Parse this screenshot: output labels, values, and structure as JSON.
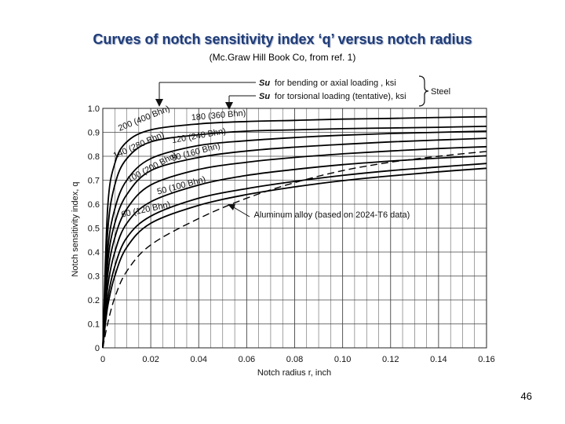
{
  "slide": {
    "title": "Curves of notch sensitivity index ‘q’ versus notch radius",
    "subtitle": "(Mc.Graw Hill Book Co, from ref. 1)",
    "page_number": "46"
  },
  "chart_data": {
    "type": "line",
    "xlabel": "Notch radius r, inch",
    "ylabel": "Notch sensitivity index, q",
    "xlim": [
      0,
      0.16
    ],
    "ylim": [
      0,
      1.0
    ],
    "x_ticks": [
      "0",
      "0.02",
      "0.04",
      "0.06",
      "0.08",
      "0.10",
      "0.12",
      "0.14",
      "0.16"
    ],
    "y_ticks": [
      "0",
      "0.1",
      "0.2",
      "0.3",
      "0.4",
      "0.5",
      "0.6",
      "0.7",
      "0.8",
      "0.9",
      "1.0"
    ],
    "grid": true,
    "legend": {
      "line1": "for bending or axial loading , ksi",
      "line2": "for torsional loading (tentative), ksi",
      "symbol": "Su",
      "group_label": "Steel"
    },
    "series": [
      {
        "name": "200 (400 Bhn)",
        "style": "solid",
        "label_angle": -22,
        "x": [
          0.0,
          0.002,
          0.005,
          0.01,
          0.02,
          0.04,
          0.06,
          0.08,
          0.1,
          0.12,
          0.14,
          0.16
        ],
        "y": [
          0.0,
          0.58,
          0.77,
          0.86,
          0.91,
          0.935,
          0.945,
          0.95,
          0.955,
          0.958,
          0.962,
          0.965
        ]
      },
      {
        "name": "180 (360 Bhn)",
        "style": "solid",
        "label_angle": -5,
        "x": [
          0.0,
          0.002,
          0.005,
          0.01,
          0.02,
          0.04,
          0.06,
          0.08,
          0.1,
          0.12,
          0.14,
          0.16
        ],
        "y": [
          0.0,
          0.48,
          0.68,
          0.79,
          0.86,
          0.89,
          0.905,
          0.91,
          0.915,
          0.918,
          0.921,
          0.925
        ]
      },
      {
        "name": "140 (280 Bhn)",
        "style": "solid",
        "label_angle": -24,
        "x": [
          0.0,
          0.002,
          0.005,
          0.01,
          0.02,
          0.04,
          0.06,
          0.08,
          0.1,
          0.12,
          0.14,
          0.16
        ],
        "y": [
          0.0,
          0.4,
          0.58,
          0.7,
          0.79,
          0.845,
          0.865,
          0.878,
          0.888,
          0.895,
          0.9,
          0.905
        ]
      },
      {
        "name": "120 (240 Bhn)",
        "style": "solid",
        "label_angle": -10,
        "x": [
          0.0,
          0.002,
          0.005,
          0.01,
          0.02,
          0.04,
          0.06,
          0.08,
          0.1,
          0.12,
          0.14,
          0.16
        ],
        "y": [
          0.0,
          0.35,
          0.52,
          0.64,
          0.74,
          0.795,
          0.822,
          0.838,
          0.85,
          0.86,
          0.868,
          0.875
        ]
      },
      {
        "name": "100 (200 Bhn)",
        "style": "solid",
        "label_angle": -28,
        "x": [
          0.0,
          0.002,
          0.005,
          0.01,
          0.02,
          0.04,
          0.06,
          0.08,
          0.1,
          0.12,
          0.14,
          0.16
        ],
        "y": [
          0.0,
          0.3,
          0.46,
          0.58,
          0.68,
          0.745,
          0.775,
          0.795,
          0.81,
          0.822,
          0.832,
          0.84
        ]
      },
      {
        "name": "80 (160 Bhn)",
        "style": "solid",
        "label_angle": -15,
        "x": [
          0.0,
          0.002,
          0.005,
          0.01,
          0.02,
          0.04,
          0.06,
          0.08,
          0.1,
          0.12,
          0.14,
          0.16
        ],
        "y": [
          0.0,
          0.25,
          0.4,
          0.52,
          0.61,
          0.68,
          0.72,
          0.745,
          0.765,
          0.78,
          0.792,
          0.802
        ]
      },
      {
        "name": "60 (120 Bhn)",
        "style": "solid",
        "label_angle": -12,
        "x": [
          0.0,
          0.002,
          0.005,
          0.01,
          0.02,
          0.04,
          0.06,
          0.08,
          0.1,
          0.12,
          0.14,
          0.16
        ],
        "y": [
          0.0,
          0.2,
          0.34,
          0.46,
          0.55,
          0.625,
          0.665,
          0.695,
          0.72,
          0.74,
          0.755,
          0.77
        ]
      },
      {
        "name": "50 (100 Bhn)",
        "style": "solid",
        "label_angle": -15,
        "x": [
          0.0,
          0.002,
          0.005,
          0.01,
          0.02,
          0.04,
          0.06,
          0.08,
          0.1,
          0.12,
          0.14,
          0.16
        ],
        "y": [
          0.0,
          0.17,
          0.3,
          0.42,
          0.52,
          0.595,
          0.64,
          0.672,
          0.698,
          0.718,
          0.735,
          0.75
        ]
      },
      {
        "name": "Aluminum alloy (based on 2024-T6 data)",
        "style": "dashed",
        "label_angle": 0,
        "x": [
          0.0,
          0.002,
          0.005,
          0.01,
          0.02,
          0.04,
          0.06,
          0.08,
          0.1,
          0.12,
          0.14,
          0.16
        ],
        "y": [
          0.0,
          0.1,
          0.21,
          0.32,
          0.43,
          0.54,
          0.625,
          0.69,
          0.74,
          0.775,
          0.8,
          0.82
        ]
      }
    ]
  }
}
